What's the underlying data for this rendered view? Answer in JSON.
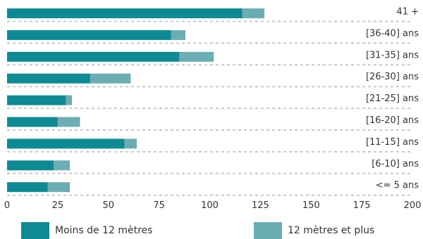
{
  "chart_data": {
    "type": "bar",
    "orientation": "horizontal",
    "stacked": true,
    "categories": [
      "41 +",
      "[36-40] ans",
      "[31-35] ans",
      "[26-30] ans",
      "[21-25] ans",
      "[16-20] ans",
      "[11-15] ans",
      "[6-10] ans",
      "<= 5 ans"
    ],
    "series": [
      {
        "name": "Moins de 12 mètres",
        "color": "#0d8a93",
        "values": [
          116,
          81,
          85,
          41,
          29,
          25,
          58,
          23,
          20
        ]
      },
      {
        "name": "12 mètres et plus",
        "color": "#6aaeb3",
        "values": [
          11,
          7,
          17,
          20,
          3,
          11,
          6,
          8,
          11
        ]
      }
    ],
    "xlim": [
      0,
      200
    ],
    "xticks": [
      "0",
      "25",
      "50",
      "75",
      "100",
      "125",
      "150",
      "175",
      "200"
    ],
    "grid": "dashed row separators",
    "legend_position": "bottom"
  }
}
